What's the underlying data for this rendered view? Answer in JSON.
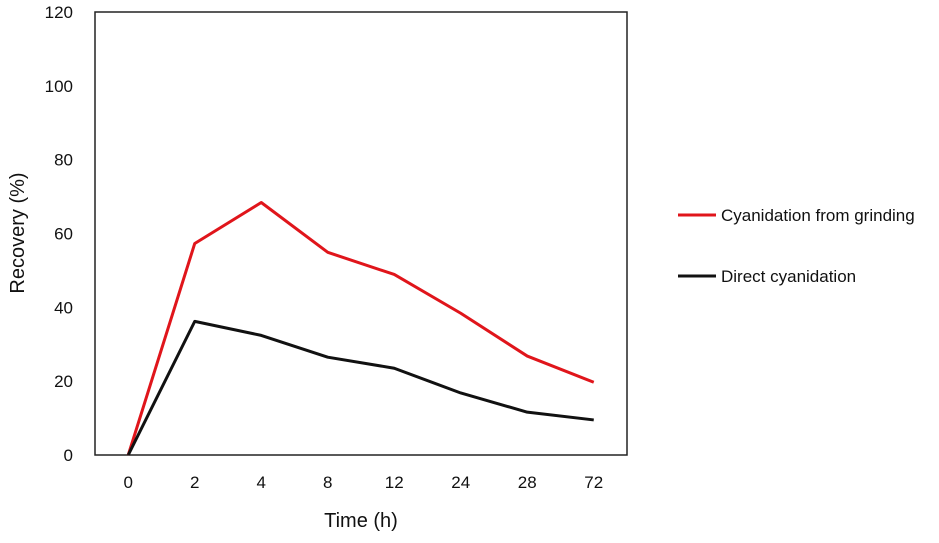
{
  "chart_data": {
    "type": "line",
    "title": "",
    "xlabel": "Time (h)",
    "ylabel": "Recovery (%)",
    "categories": [
      "0",
      "2",
      "4",
      "8",
      "12",
      "24",
      "28",
      "72"
    ],
    "ylim": [
      0,
      120
    ],
    "yticks": [
      "0",
      "20",
      "40",
      "60",
      "80",
      "100",
      "120"
    ],
    "grid": false,
    "legend_position": "right",
    "series": [
      {
        "name": "Cyanidation from grinding",
        "color": "#e0151b",
        "values": [
          0,
          57.3,
          68.4,
          54.9,
          48.9,
          38.4,
          26.8,
          19.7
        ]
      },
      {
        "name": "Direct cyanidation",
        "color": "#111111",
        "values": [
          0,
          36.2,
          32.4,
          26.5,
          23.5,
          16.8,
          11.6,
          9.5
        ]
      }
    ]
  }
}
